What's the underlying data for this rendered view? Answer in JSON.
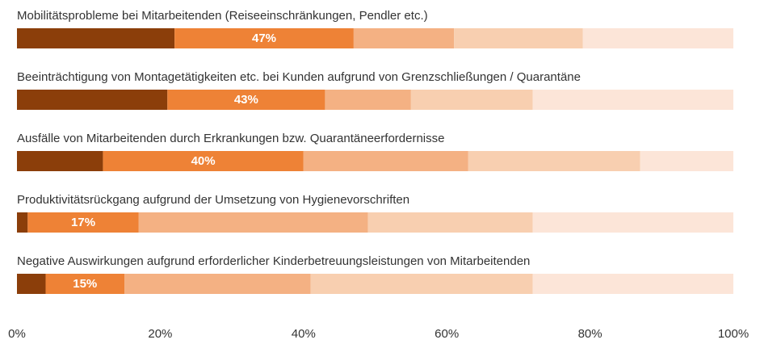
{
  "chart_data": {
    "type": "stacked_barh",
    "categories": [
      "Mobilitätsprobleme bei Mitarbeitenden (Reiseeinschränkungen, Pendler etc.)",
      "Beeinträchtigung von Montagetätigkeiten etc. bei Kunden aufgrund von Grenzschließungen / Quarantäne",
      "Ausfälle von Mitarbeitenden durch Erkrankungen bzw. Quarantäneerfordernisse",
      "Produktivitätsrückgang aufgrund der Umsetzung von Hygienevorschriften",
      "Negative Auswirkungen aufgrund erforderlicher Kinderbetreuungsleistungen von Mitarbeitenden"
    ],
    "series": [
      {
        "color": "#8b3e0a",
        "values": [
          22,
          21,
          12,
          1.5,
          4
        ]
      },
      {
        "color": "#ee8236",
        "values": [
          25,
          22,
          28,
          15.5,
          11
        ]
      },
      {
        "color": "#f4b183",
        "values": [
          14,
          12,
          23,
          32,
          26
        ]
      },
      {
        "color": "#f8cfb0",
        "values": [
          18,
          17,
          24,
          23,
          31
        ]
      },
      {
        "color": "#fce5d8",
        "values": [
          21,
          28,
          13,
          28,
          28
        ]
      }
    ],
    "annotations": [
      "47%",
      "43%",
      "40%",
      "17%",
      "15%"
    ],
    "xlim": [
      0,
      100
    ],
    "xticks": [
      {
        "value": 0,
        "label": "0%"
      },
      {
        "value": 20,
        "label": "20%"
      },
      {
        "value": 40,
        "label": "40%"
      },
      {
        "value": 60,
        "label": "60%"
      },
      {
        "value": 80,
        "label": "80%"
      },
      {
        "value": 100,
        "label": "100%"
      }
    ]
  }
}
